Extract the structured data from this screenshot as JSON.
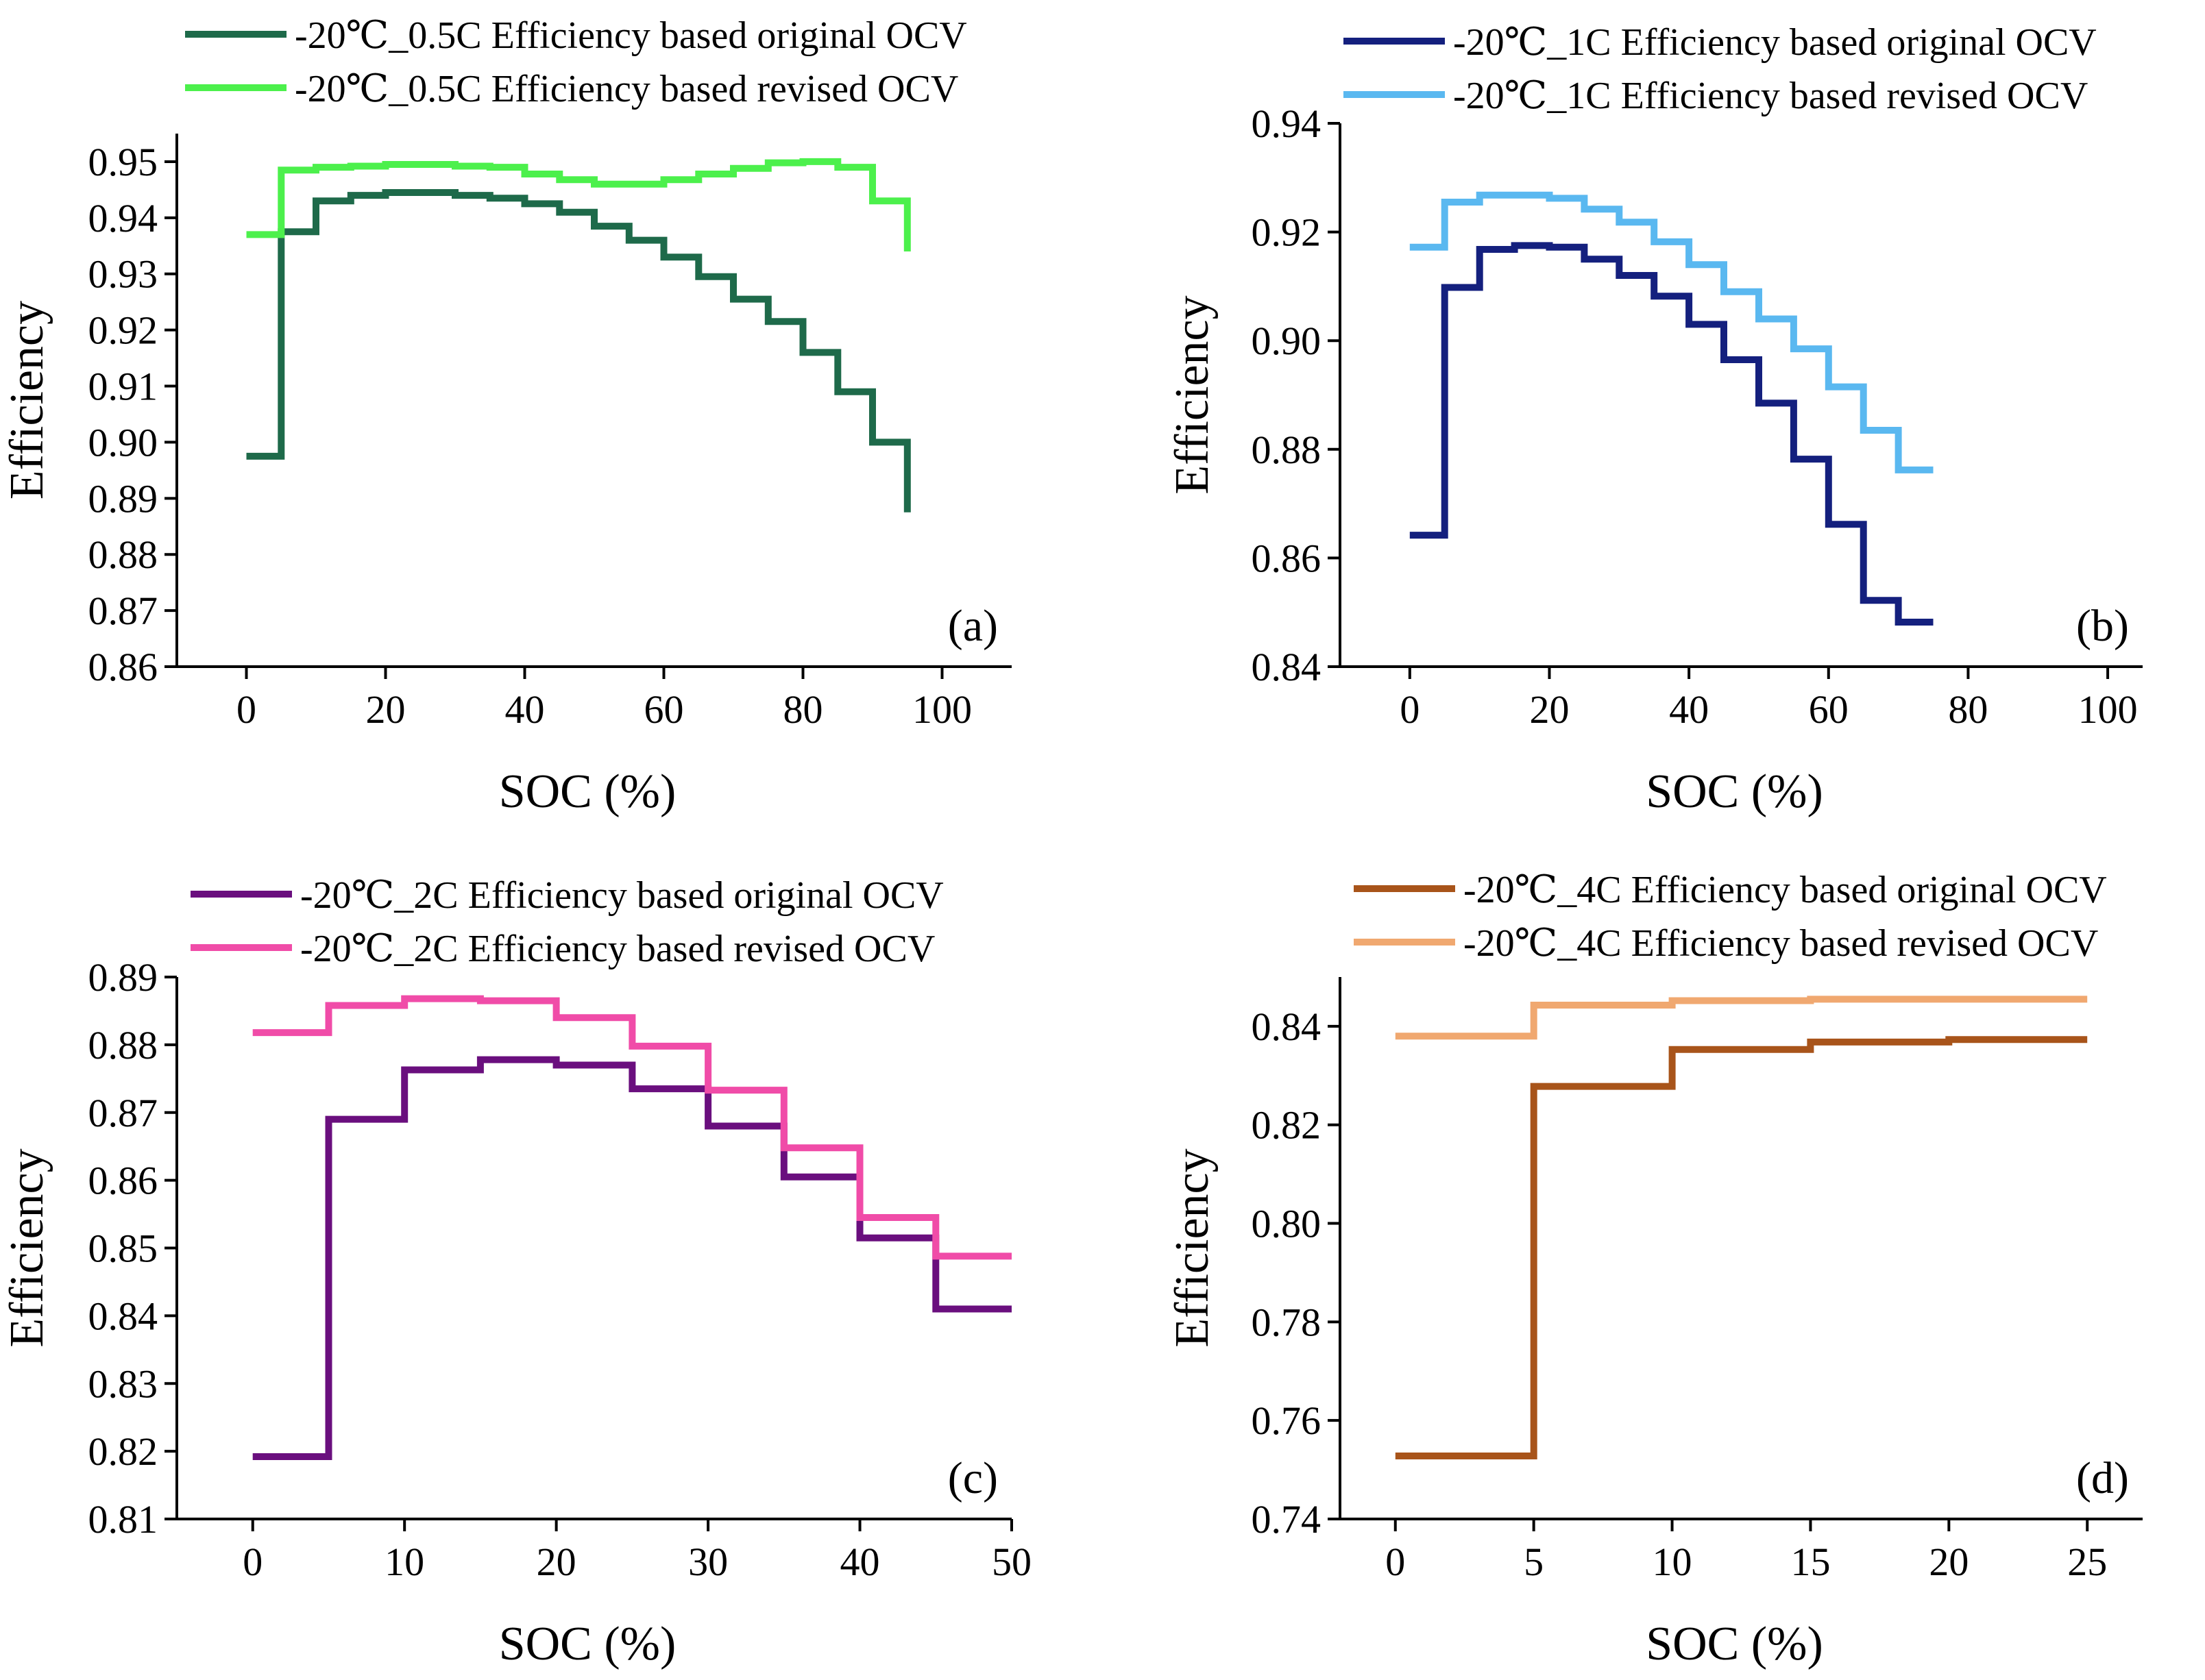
{
  "chart_data": [
    {
      "type": "line",
      "panel_label": "(a)",
      "xlabel": "SOC (%)",
      "ylabel": "Efficiency",
      "xlim": [
        -10,
        110
      ],
      "ylim": [
        0.86,
        0.955
      ],
      "xticks": [
        0,
        20,
        40,
        60,
        80,
        100
      ],
      "xtick_labels": [
        "0",
        "20",
        "40",
        "60",
        "80",
        "100"
      ],
      "yticks": [
        0.86,
        0.87,
        0.88,
        0.89,
        0.9,
        0.91,
        0.92,
        0.93,
        0.94,
        0.95
      ],
      "ytick_labels": [
        "0.86",
        "0.87",
        "0.88",
        "0.89",
        "0.90",
        "0.91",
        "0.92",
        "0.93",
        "0.94",
        "0.95"
      ],
      "legend_position": "top-left",
      "series": [
        {
          "name": "-20℃_0.5C  Efficiency based original OCV",
          "color": "#1e6a4a",
          "x": [
            0,
            5,
            10,
            15,
            20,
            25,
            30,
            35,
            40,
            45,
            50,
            55,
            60,
            65,
            70,
            75,
            80,
            85,
            90,
            95
          ],
          "values": [
            0.8975,
            0.9375,
            0.943,
            0.944,
            0.9445,
            0.9445,
            0.944,
            0.9435,
            0.9425,
            0.941,
            0.9385,
            0.936,
            0.933,
            0.9295,
            0.9255,
            0.9215,
            0.916,
            0.909,
            0.9,
            0.8875
          ]
        },
        {
          "name": "-20℃_0.5C  Efficiency based revised OCV",
          "color": "#4cf04c",
          "x": [
            0,
            5,
            10,
            15,
            20,
            25,
            30,
            35,
            40,
            45,
            50,
            55,
            60,
            65,
            70,
            75,
            80,
            85,
            90,
            95
          ],
          "values": [
            0.937,
            0.9485,
            0.949,
            0.9492,
            0.9495,
            0.9495,
            0.9492,
            0.949,
            0.9478,
            0.9468,
            0.946,
            0.946,
            0.9468,
            0.9478,
            0.9488,
            0.9498,
            0.95,
            0.949,
            0.943,
            0.934
          ]
        }
      ]
    },
    {
      "type": "line",
      "panel_label": "(b)",
      "xlabel": "SOC (%)",
      "ylabel": "Efficiency",
      "xlim": [
        -10,
        105
      ],
      "ylim": [
        0.84,
        0.94
      ],
      "xticks": [
        0,
        20,
        40,
        60,
        80,
        100
      ],
      "xtick_labels": [
        "0",
        "20",
        "40",
        "60",
        "80",
        "100"
      ],
      "yticks": [
        0.84,
        0.86,
        0.88,
        0.9,
        0.92,
        0.94
      ],
      "ytick_labels": [
        "0.84",
        "0.86",
        "0.88",
        "0.90",
        "0.92",
        "0.94"
      ],
      "legend_position": "top-center",
      "series": [
        {
          "name": "-20℃_1C  Efficiency based original OCV",
          "color": "#14207e",
          "x": [
            0,
            5,
            10,
            15,
            20,
            25,
            30,
            35,
            40,
            45,
            50,
            55,
            60,
            65,
            70,
            75
          ],
          "values": [
            0.8642,
            0.9098,
            0.9168,
            0.9175,
            0.9172,
            0.915,
            0.912,
            0.9082,
            0.903,
            0.8965,
            0.8885,
            0.8782,
            0.8662,
            0.8522,
            0.8482,
            0.8482
          ]
        },
        {
          "name": "-20℃_1C  Efficiency based revised OCV",
          "color": "#5ab8f0",
          "x": [
            0,
            5,
            10,
            15,
            20,
            25,
            30,
            35,
            40,
            45,
            50,
            55,
            60,
            65,
            70,
            75
          ],
          "values": [
            0.9172,
            0.9255,
            0.9268,
            0.9268,
            0.9262,
            0.9242,
            0.9218,
            0.9182,
            0.914,
            0.909,
            0.904,
            0.8985,
            0.8915,
            0.8835,
            0.8762,
            0.8762
          ]
        }
      ]
    },
    {
      "type": "line",
      "panel_label": "(c)",
      "xlabel": "SOC (%)",
      "ylabel": "Efficiency",
      "xlim": [
        -5,
        50
      ],
      "ylim": [
        0.81,
        0.89
      ],
      "xticks": [
        0,
        10,
        20,
        30,
        40,
        50
      ],
      "xtick_labels": [
        "0",
        "10",
        "20",
        "30",
        "40",
        "50"
      ],
      "yticks": [
        0.81,
        0.82,
        0.83,
        0.84,
        0.85,
        0.86,
        0.87,
        0.88,
        0.89
      ],
      "ytick_labels": [
        "0.81",
        "0.82",
        "0.83",
        "0.84",
        "0.85",
        "0.86",
        "0.87",
        "0.88",
        "0.89"
      ],
      "legend_position": "top-left",
      "series": [
        {
          "name": "-20℃_2C  Efficiency based original OCV",
          "color": "#6a0f7e",
          "x": [
            0,
            5,
            10,
            15,
            20,
            25,
            30,
            35,
            40,
            45,
            50
          ],
          "values": [
            0.8192,
            0.869,
            0.8763,
            0.8778,
            0.877,
            0.8735,
            0.868,
            0.8605,
            0.8515,
            0.841,
            0.841
          ]
        },
        {
          "name": "-20℃_2C  Efficiency based revised OCV",
          "color": "#f04ca8",
          "x": [
            0,
            5,
            10,
            15,
            20,
            25,
            30,
            35,
            40,
            45,
            50
          ],
          "values": [
            0.8818,
            0.8858,
            0.8868,
            0.8865,
            0.884,
            0.8798,
            0.8733,
            0.8648,
            0.8545,
            0.8488,
            0.8488
          ]
        }
      ]
    },
    {
      "type": "line",
      "panel_label": "(d)",
      "xlabel": "SOC (%)",
      "ylabel": "Efficiency",
      "xlim": [
        -2,
        27
      ],
      "ylim": [
        0.74,
        0.85
      ],
      "xticks": [
        0,
        5,
        10,
        15,
        20,
        25
      ],
      "xtick_labels": [
        "0",
        "5",
        "10",
        "15",
        "20",
        "25"
      ],
      "yticks": [
        0.74,
        0.76,
        0.78,
        0.8,
        0.82,
        0.84
      ],
      "ytick_labels": [
        "0.74",
        "0.76",
        "0.78",
        "0.80",
        "0.82",
        "0.84"
      ],
      "legend_position": "top-center",
      "series": [
        {
          "name": "-20℃_4C  Efficiency based original OCV",
          "color": "#a8541a",
          "x": [
            0,
            5,
            10,
            15,
            20,
            25
          ],
          "values": [
            0.7528,
            0.8278,
            0.8353,
            0.8368,
            0.8373,
            0.8373
          ]
        },
        {
          "name": "-20℃_4C  Efficiency based revised OCV",
          "color": "#f0a870",
          "x": [
            0,
            5,
            10,
            15,
            20,
            25
          ],
          "values": [
            0.838,
            0.8443,
            0.8452,
            0.8455,
            0.8455,
            0.8455
          ]
        }
      ]
    }
  ]
}
